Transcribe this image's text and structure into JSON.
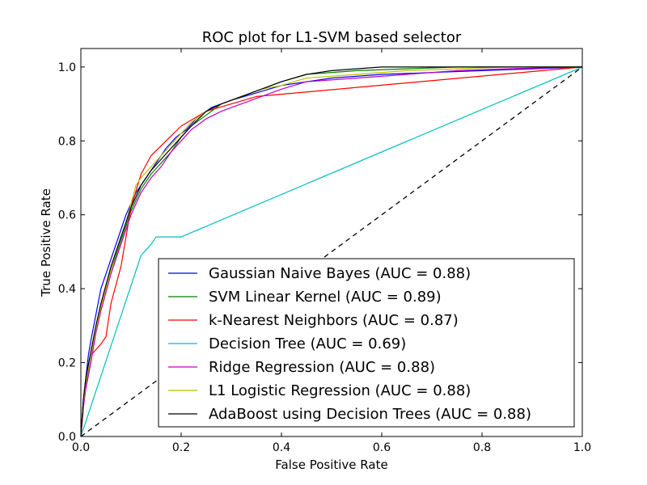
{
  "chart_data": {
    "type": "line",
    "title": "ROC plot for L1-SVM based selector",
    "xlabel": "False Positive Rate",
    "ylabel": "True Positive Rate",
    "xlim": [
      0.0,
      1.0
    ],
    "ylim": [
      0.0,
      1.05
    ],
    "xticks": [
      "0.0",
      "0.2",
      "0.4",
      "0.6",
      "0.8",
      "1.0"
    ],
    "yticks": [
      "0.0",
      "0.2",
      "0.4",
      "0.6",
      "0.8",
      "1.0"
    ],
    "grid": false,
    "legend_position": "lower-right",
    "series": [
      {
        "name": "Gaussian Naive Bayes  (AUC = 0.88)",
        "color": "#0000ff",
        "x": [
          0,
          0.005,
          0.01,
          0.015,
          0.02,
          0.03,
          0.04,
          0.05,
          0.06,
          0.07,
          0.08,
          0.09,
          0.1,
          0.11,
          0.12,
          0.13,
          0.15,
          0.17,
          0.19,
          0.21,
          0.23,
          0.26,
          0.3,
          0.35,
          0.4,
          0.5,
          0.6,
          0.7,
          0.8,
          1.0
        ],
        "y": [
          0,
          0.1,
          0.16,
          0.22,
          0.26,
          0.33,
          0.4,
          0.44,
          0.48,
          0.52,
          0.56,
          0.6,
          0.63,
          0.66,
          0.68,
          0.7,
          0.74,
          0.78,
          0.81,
          0.83,
          0.86,
          0.89,
          0.91,
          0.93,
          0.95,
          0.97,
          0.98,
          0.985,
          0.99,
          1.0
        ]
      },
      {
        "name": "SVM Linear Kernel  (AUC = 0.89)",
        "color": "#008000",
        "x": [
          0,
          0.005,
          0.01,
          0.02,
          0.03,
          0.04,
          0.05,
          0.06,
          0.07,
          0.08,
          0.09,
          0.1,
          0.11,
          0.12,
          0.14,
          0.16,
          0.18,
          0.2,
          0.22,
          0.25,
          0.28,
          0.32,
          0.36,
          0.4,
          0.45,
          0.55,
          0.65,
          0.75,
          0.85,
          1.0
        ],
        "y": [
          0,
          0.09,
          0.14,
          0.22,
          0.29,
          0.35,
          0.4,
          0.45,
          0.49,
          0.53,
          0.57,
          0.61,
          0.64,
          0.67,
          0.71,
          0.74,
          0.77,
          0.81,
          0.84,
          0.87,
          0.9,
          0.92,
          0.94,
          0.96,
          0.98,
          0.99,
          0.995,
          1.0,
          1.0,
          1.0
        ]
      },
      {
        "name": "k-Nearest Neighbors  (AUC = 0.87)",
        "color": "#ff0000",
        "x": [
          0,
          0.01,
          0.02,
          0.04,
          0.05,
          0.06,
          0.08,
          0.1,
          0.12,
          0.14,
          0.17,
          0.2,
          0.25,
          0.3,
          0.35,
          1.0
        ],
        "y": [
          0,
          0.15,
          0.22,
          0.25,
          0.27,
          0.36,
          0.46,
          0.62,
          0.71,
          0.76,
          0.8,
          0.84,
          0.88,
          0.9,
          0.92,
          1.0
        ]
      },
      {
        "name": "Decision Tree  (AUC = 0.69)",
        "color": "#00bfbf",
        "x": [
          0,
          0.12,
          0.14,
          0.15,
          0.2,
          1.0
        ],
        "y": [
          0,
          0.49,
          0.52,
          0.54,
          0.54,
          1.0
        ]
      },
      {
        "name": "Ridge Regression  (AUC = 0.88)",
        "color": "#bf00bf",
        "x": [
          0,
          0.005,
          0.01,
          0.02,
          0.03,
          0.04,
          0.05,
          0.06,
          0.07,
          0.08,
          0.09,
          0.1,
          0.11,
          0.12,
          0.14,
          0.16,
          0.18,
          0.2,
          0.22,
          0.25,
          0.28,
          0.32,
          0.36,
          0.4,
          0.45,
          0.55,
          0.65,
          0.75,
          0.85,
          1.0
        ],
        "y": [
          0,
          0.08,
          0.13,
          0.2,
          0.28,
          0.34,
          0.39,
          0.44,
          0.48,
          0.52,
          0.56,
          0.6,
          0.63,
          0.66,
          0.7,
          0.73,
          0.77,
          0.8,
          0.83,
          0.86,
          0.88,
          0.9,
          0.92,
          0.94,
          0.96,
          0.97,
          0.98,
          0.99,
          0.995,
          1.0
        ]
      },
      {
        "name": "L1 Logistic Regression (AUC = 0.88)",
        "color": "#bfbf00",
        "x": [
          0,
          0.005,
          0.01,
          0.02,
          0.03,
          0.04,
          0.05,
          0.06,
          0.07,
          0.08,
          0.09,
          0.1,
          0.11,
          0.12,
          0.14,
          0.16,
          0.18,
          0.2,
          0.22,
          0.25,
          0.28,
          0.32,
          0.36,
          0.4,
          0.45,
          0.55,
          0.65,
          0.75,
          0.85,
          1.0
        ],
        "y": [
          0,
          0.09,
          0.15,
          0.22,
          0.29,
          0.35,
          0.4,
          0.45,
          0.5,
          0.54,
          0.58,
          0.63,
          0.68,
          0.7,
          0.73,
          0.76,
          0.79,
          0.82,
          0.85,
          0.88,
          0.9,
          0.92,
          0.94,
          0.95,
          0.97,
          0.98,
          0.99,
          0.995,
          1.0,
          1.0
        ]
      },
      {
        "name": "AdaBoost using Decision Trees (AUC = 0.88)",
        "color": "#000000",
        "x": [
          0,
          0.005,
          0.01,
          0.02,
          0.03,
          0.04,
          0.05,
          0.06,
          0.07,
          0.08,
          0.09,
          0.1,
          0.11,
          0.12,
          0.14,
          0.16,
          0.18,
          0.2,
          0.22,
          0.25,
          0.28,
          0.32,
          0.36,
          0.4,
          0.45,
          0.5,
          0.6,
          0.7,
          0.8,
          1.0
        ],
        "y": [
          0,
          0.1,
          0.16,
          0.23,
          0.3,
          0.36,
          0.41,
          0.46,
          0.5,
          0.54,
          0.58,
          0.62,
          0.65,
          0.68,
          0.72,
          0.75,
          0.78,
          0.81,
          0.84,
          0.88,
          0.9,
          0.92,
          0.94,
          0.96,
          0.98,
          0.99,
          1.0,
          1.0,
          1.0,
          1.0
        ]
      }
    ],
    "reference_line": {
      "color": "#000000",
      "dash": "dashed",
      "x": [
        0,
        1
      ],
      "y": [
        0,
        1
      ]
    }
  }
}
